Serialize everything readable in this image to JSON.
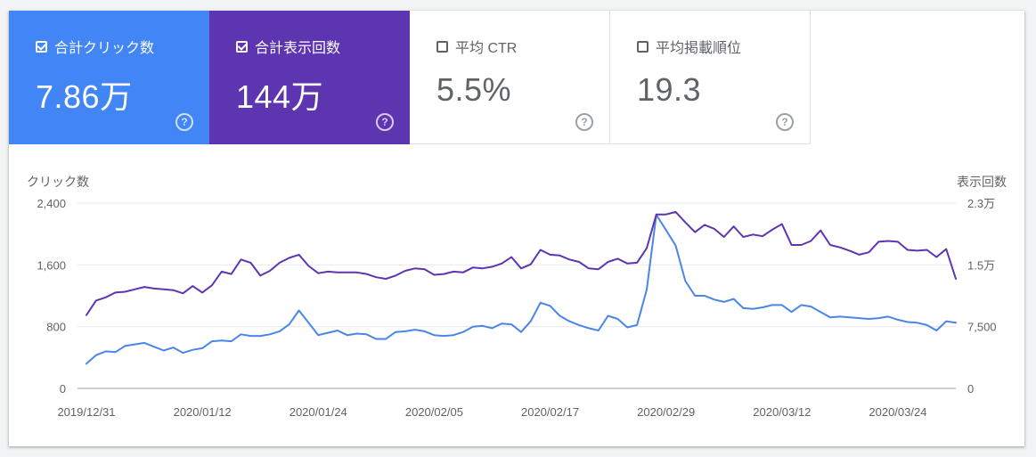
{
  "cards": [
    {
      "label": "合計クリック数",
      "value": "7.86万",
      "checked": true,
      "color": "#4285f4"
    },
    {
      "label": "合計表示回数",
      "value": "144万",
      "checked": true,
      "color": "#5e35b1"
    },
    {
      "label": "平均 CTR",
      "value": "5.5%",
      "checked": false,
      "color": "#ffffff"
    },
    {
      "label": "平均掲載順位",
      "value": "19.3",
      "checked": false,
      "color": "#ffffff"
    }
  ],
  "chart_data": {
    "type": "line",
    "left_axis_title": "クリック数",
    "right_axis_title": "表示回数",
    "left_ticks": [
      "0",
      "800",
      "1,600",
      "2,400"
    ],
    "right_ticks": [
      "0",
      "7,500",
      "1.5万",
      "2.3万"
    ],
    "left_ylim": [
      0,
      2400
    ],
    "right_ylim": [
      0,
      23000
    ],
    "x_labels": [
      "2019/12/31",
      "2020/01/12",
      "2020/01/24",
      "2020/02/05",
      "2020/02/17",
      "2020/02/29",
      "2020/03/12",
      "2020/03/24"
    ],
    "grid": true,
    "series": [
      {
        "name": "クリック数",
        "color": "#4a86e8",
        "axis": "left",
        "values": [
          320,
          430,
          480,
          470,
          550,
          570,
          590,
          540,
          490,
          530,
          460,
          500,
          520,
          610,
          620,
          610,
          700,
          680,
          680,
          700,
          740,
          830,
          1010,
          850,
          690,
          720,
          750,
          690,
          710,
          700,
          640,
          640,
          730,
          740,
          760,
          740,
          690,
          680,
          690,
          730,
          800,
          810,
          780,
          840,
          830,
          730,
          870,
          1110,
          1070,
          940,
          870,
          820,
          780,
          750,
          940,
          900,
          790,
          820,
          1280,
          2250,
          2050,
          1850,
          1390,
          1200,
          1200,
          1150,
          1120,
          1160,
          1040,
          1030,
          1050,
          1080,
          1080,
          990,
          1080,
          1060,
          990,
          920,
          930,
          920,
          910,
          900,
          910,
          930,
          890,
          860,
          850,
          820,
          750,
          870,
          850
        ]
      },
      {
        "name": "表示回数",
        "color": "#5e35b1",
        "axis": "right",
        "values": [
          9100,
          10900,
          11300,
          11900,
          12000,
          12300,
          12600,
          12400,
          12300,
          12200,
          11800,
          12700,
          11900,
          12800,
          14500,
          14200,
          16000,
          15600,
          14000,
          14600,
          15600,
          16200,
          16600,
          15200,
          14300,
          14500,
          14400,
          14400,
          14400,
          14200,
          13800,
          13600,
          14000,
          14600,
          14900,
          14800,
          14100,
          14200,
          14500,
          14400,
          15000,
          14900,
          15100,
          15500,
          16300,
          14900,
          15400,
          17200,
          16600,
          16500,
          16000,
          15700,
          14900,
          14800,
          15700,
          16100,
          15500,
          15600,
          17400,
          21600,
          21600,
          21900,
          20600,
          19400,
          20300,
          19800,
          18800,
          20100,
          18800,
          19100,
          18900,
          19700,
          20400,
          17800,
          17800,
          18300,
          19600,
          17800,
          17500,
          17100,
          16600,
          16900,
          18200,
          18300,
          18200,
          17200,
          17100,
          17200,
          16300,
          17300,
          13600
        ]
      }
    ]
  }
}
